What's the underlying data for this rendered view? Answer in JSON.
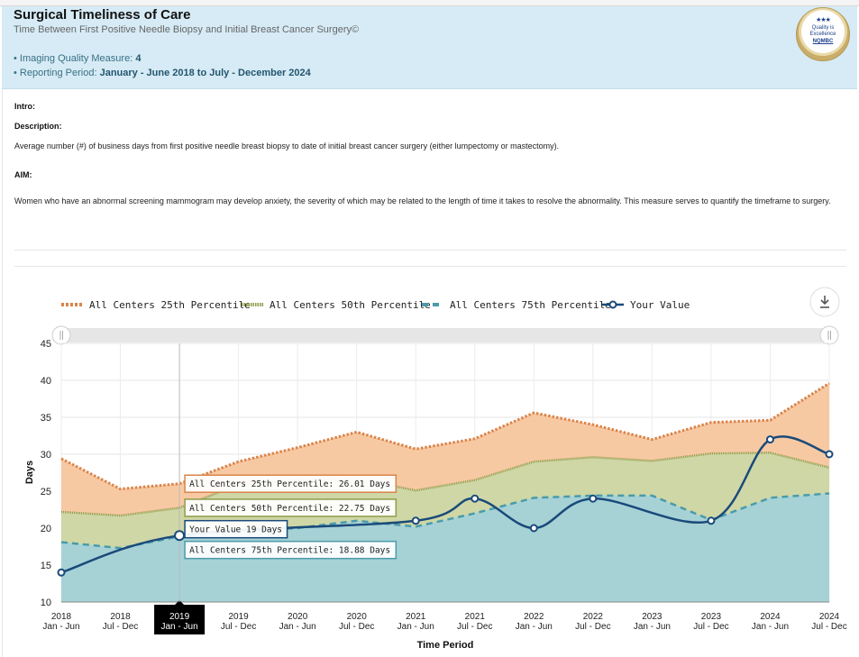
{
  "header": {
    "title": "Surgical Timeliness of Care",
    "subtitle": "Time Between First Positive Needle Biopsy and Initial Breast Cancer Surgery©",
    "measure_label": "• Imaging Quality Measure:",
    "measure_value": "4",
    "period_label": "• Reporting Period:",
    "period_value": "January - June 2018 to July - December 2024",
    "badge": {
      "line1": "Quality is",
      "line2": "Excellence",
      "line3": "NQMBC",
      "stars": "★★★"
    }
  },
  "content": {
    "intro_label": "Intro:",
    "description_label": "Description:",
    "description_text": "Average number (#) of business days from first positive needle breast biopsy to date of initial breast cancer surgery (either lumpectomy or mastectomy).",
    "aim_label": "AIM:",
    "aim_text": "Women who have an abnormal screening mammogram may develop anxiety, the severity of which may be related to the length of time it takes to resolve the abnormality. This measure serves to quantify the timeframe to surgery."
  },
  "colors": {
    "p25": "#d9844a",
    "p25_fill": "#f7c9a3",
    "p50": "#8e9c4a",
    "p50_fill": "#cfd7a6",
    "p75": "#4a9bab",
    "p75_fill": "#a6d2d6",
    "yours": "#1a4a7a"
  },
  "chart_data": {
    "type": "area",
    "xlabel": "Time Period",
    "ylabel": "Days",
    "ylim": [
      10,
      45
    ],
    "yticks": [
      10,
      15,
      20,
      25,
      30,
      35,
      40,
      45
    ],
    "grid": true,
    "legend_position": "top",
    "categories": [
      {
        "year": "2018",
        "half": "Jan - Jun"
      },
      {
        "year": "2018",
        "half": "Jul - Dec"
      },
      {
        "year": "2019",
        "half": "Jan - Jun"
      },
      {
        "year": "2019",
        "half": "Jul - Dec"
      },
      {
        "year": "2020",
        "half": "Jan - Jun"
      },
      {
        "year": "2020",
        "half": "Jul - Dec"
      },
      {
        "year": "2021",
        "half": "Jan - Jun"
      },
      {
        "year": "2021",
        "half": "Jul - Dec"
      },
      {
        "year": "2022",
        "half": "Jan - Jun"
      },
      {
        "year": "2022",
        "half": "Jul - Dec"
      },
      {
        "year": "2023",
        "half": "Jan - Jun"
      },
      {
        "year": "2023",
        "half": "Jul - Dec"
      },
      {
        "year": "2024",
        "half": "Jan - Jun"
      },
      {
        "year": "2024",
        "half": "Jul - Dec"
      }
    ],
    "highlighted_category": 2,
    "series": [
      {
        "name": "All Centers 25th Percentile",
        "style": "dotted-area",
        "values": [
          29.4,
          25.3,
          26.01,
          29.0,
          30.9,
          33.0,
          30.7,
          32.1,
          35.6,
          34.0,
          32.0,
          34.3,
          34.6,
          39.6
        ]
      },
      {
        "name": "All Centers 50th Percentile",
        "style": "dotted-area",
        "values": [
          22.2,
          21.7,
          22.75,
          25.9,
          26.5,
          26.7,
          25.1,
          26.5,
          29.0,
          29.6,
          29.1,
          30.1,
          30.2,
          28.2
        ]
      },
      {
        "name": "All Centers 75th Percentile",
        "style": "dashed-area",
        "values": [
          18.1,
          17.3,
          18.88,
          19.6,
          20.0,
          21.0,
          20.2,
          22.0,
          24.1,
          24.4,
          24.4,
          21.1,
          24.1,
          24.7
        ]
      },
      {
        "name": "Your Value",
        "style": "line-markers",
        "values": [
          14,
          null,
          19,
          null,
          null,
          null,
          21,
          24,
          20,
          24,
          null,
          21,
          32,
          30
        ]
      }
    ],
    "tooltip": {
      "p25": "All Centers 25th Percentile: 26.01 Days",
      "p50": "All Centers 50th Percentile: 22.75 Days",
      "yours": "Your Value 19 Days",
      "p75": "All Centers 75th Percentile: 18.88 Days"
    }
  }
}
